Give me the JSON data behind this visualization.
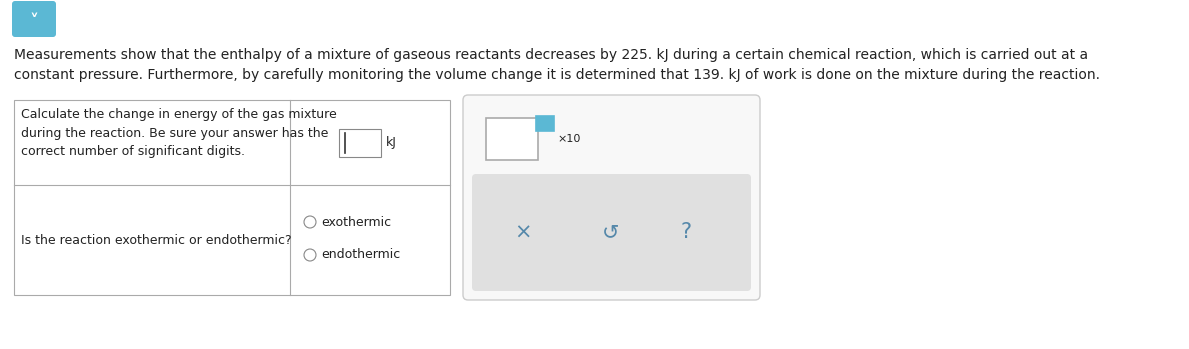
{
  "background_color": "#ffffff",
  "paragraph_text_line1": "Measurements show that the enthalpy of a mixture of gaseous reactants decreases by 225. kJ during a certain chemical reaction, which is carried out at a",
  "paragraph_text_line2": "constant pressure. Furthermore, by carefully monitoring the volume change it is determined that 139. kJ of work is done on the mixture during the reaction.",
  "table_left_col1": "Calculate the change in energy of the gas mixture\nduring the reaction. Be sure your answer has the\ncorrect number of significant digits.",
  "table_left_col2": "Is the reaction exothermic or endothermic?",
  "radio_exothermic": "exothermic",
  "radio_endothermic": "endothermic",
  "symbols": [
    "×",
    "↺",
    "?"
  ],
  "icon_color": "#5bb8d4",
  "table_border_color": "#aaaaaa",
  "text_color": "#222222",
  "radio_color": "#888888",
  "font_size_para": 10.0,
  "font_size_table": 9.0,
  "panel_bg": "#f0f0f0",
  "panel_border": "#cccccc",
  "sym_color": "#5588aa"
}
